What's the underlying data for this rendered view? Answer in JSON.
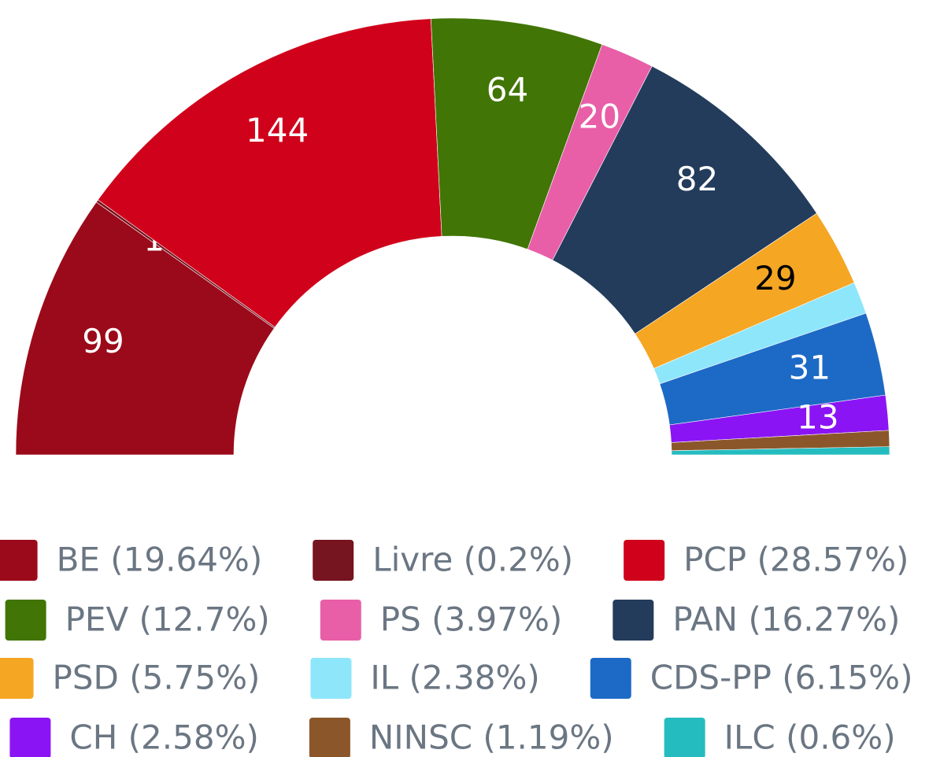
{
  "chart_data": {
    "type": "semicircle",
    "categories": [
      "BE (19.64%)",
      "Livre (0.2%)",
      "PCP (28.57%)",
      "PEV (12.7%)",
      "PS (3.97%)",
      "PAN (16.27%)",
      "PSD (5.75%)",
      "IL (2.38%)",
      "CDS-PP (6.15%)",
      "CH (2.58%)",
      "NINSC (1.19%)",
      "ILC (0.6%)"
    ],
    "values": [
      99,
      1,
      144,
      64,
      20,
      82,
      29,
      12,
      31,
      13,
      6,
      3
    ],
    "value_labels": [
      "99",
      "1",
      "144",
      "64",
      "20",
      "82",
      "29",
      null,
      "31",
      "13",
      null,
      null
    ],
    "colors": [
      "#9b0a1a",
      "#76141f",
      "#d0021b",
      "#417505",
      "#e85fa8",
      "#233c5c",
      "#f5a623",
      "#8ee6fb",
      "#1d6ac6",
      "#8b14f5",
      "#8b572a",
      "#25bcc0"
    ],
    "legend": "bottom"
  }
}
